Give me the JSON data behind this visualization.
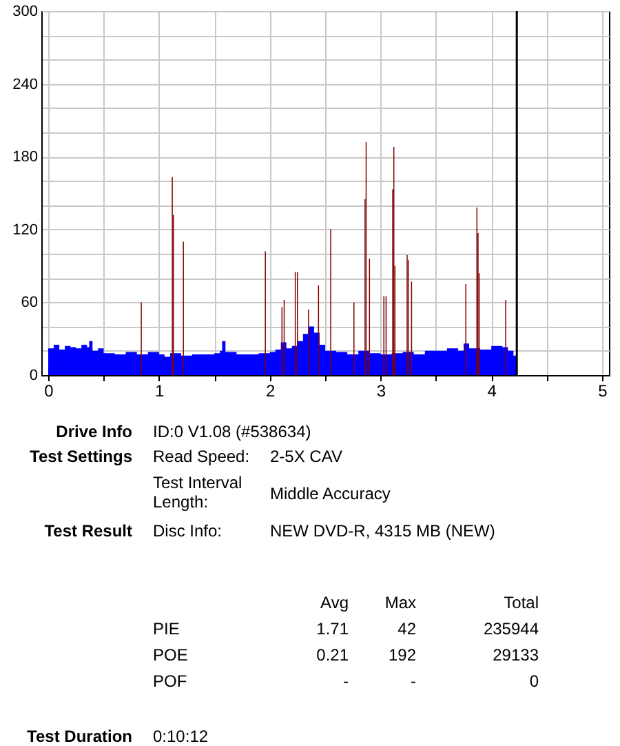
{
  "chart_data": {
    "type": "area",
    "xlim": [
      0,
      5
    ],
    "ylim": [
      0,
      300
    ],
    "xticks": [
      0,
      {
        "value": 0.5,
        "label": null
      },
      1,
      {
        "value": 1.5,
        "label": null
      },
      2,
      {
        "value": 2.5,
        "label": null
      },
      3,
      {
        "value": 3.5,
        "label": null
      },
      4,
      {
        "value": 4.5,
        "label": null
      },
      5
    ],
    "yticks": [
      0,
      {
        "value": 20,
        "label": null
      },
      {
        "value": 40,
        "label": null
      },
      60,
      {
        "value": 80,
        "label": null
      },
      {
        "value": 100,
        "label": null
      },
      120,
      {
        "value": 140,
        "label": null
      },
      {
        "value": 160,
        "label": null
      },
      180,
      {
        "value": 200,
        "label": null
      },
      {
        "value": 220,
        "label": null
      },
      240,
      {
        "value": 260,
        "label": null
      },
      {
        "value": 280,
        "label": null
      },
      300
    ],
    "grid": true,
    "series": [
      {
        "color": "#0000ff",
        "x": [
          0,
          0.05,
          0.1,
          0.15,
          0.2,
          0.25,
          0.3,
          0.35,
          0.37,
          0.4,
          0.45,
          0.5,
          0.6,
          0.7,
          0.8,
          0.9,
          1.0,
          1.05,
          1.1,
          1.2,
          1.3,
          1.4,
          1.5,
          1.55,
          1.57,
          1.6,
          1.7,
          1.8,
          1.9,
          2.0,
          2.05,
          2.1,
          2.15,
          2.2,
          2.25,
          2.3,
          2.35,
          2.4,
          2.45,
          2.5,
          2.6,
          2.7,
          2.8,
          2.9,
          3.0,
          3.1,
          3.2,
          3.3,
          3.4,
          3.5,
          3.6,
          3.7,
          3.75,
          3.8,
          3.9,
          4.0,
          4.1,
          4.15,
          4.2,
          4.23
        ],
        "values": [
          22,
          25,
          21,
          24,
          23,
          22,
          25,
          23,
          28,
          20,
          22,
          18,
          17,
          19,
          17,
          19,
          17,
          15,
          18,
          16,
          17,
          17,
          18,
          20,
          28,
          19,
          17,
          17,
          18,
          19,
          21,
          27,
          22,
          24,
          28,
          34,
          40,
          35,
          25,
          20,
          19,
          17,
          20,
          18,
          17,
          18,
          19,
          17,
          20,
          20,
          22,
          20,
          26,
          22,
          21,
          24,
          23,
          20,
          16,
          15
        ]
      },
      {
        "type": "bar",
        "color": "#800000",
        "x": [
          0.84,
          1.12,
          1.13,
          1.22,
          1.96,
          2.11,
          2.13,
          2.23,
          2.25,
          2.35,
          2.44,
          2.55,
          2.76,
          2.86,
          2.87,
          2.9,
          3.03,
          3.05,
          3.11,
          3.12,
          3.13,
          3.24,
          3.25,
          3.28,
          3.77,
          3.87,
          3.88,
          3.89,
          4.13
        ],
        "values": [
          60,
          163,
          132,
          110,
          102,
          56,
          62,
          85,
          85,
          54,
          74,
          120,
          60,
          145,
          192,
          96,
          65,
          65,
          153,
          188,
          90,
          99,
          95,
          77,
          75,
          138,
          117,
          84,
          62
        ]
      }
    ],
    "ref_lines": [
      {
        "axis": "x",
        "value": 4.23,
        "color": "#000000"
      }
    ],
    "annotations": [
      "Drive Info",
      "ID:0 V1.08 (#538634)",
      "Test Settings",
      "Read Speed:",
      "2-5X CAV",
      "Test Interval Length:",
      "Middle Accuracy",
      "Test Result",
      "Disc Info:",
      "NEW DVD-R, 4315 MB (NEW)",
      "Avg",
      "Max",
      "Total",
      "PIE",
      "1.71",
      "42",
      "235944",
      "POE",
      "0.21",
      "192",
      "29133",
      "POF",
      "-",
      "-",
      "0",
      "Test Duration",
      "0:10:12"
    ]
  }
}
